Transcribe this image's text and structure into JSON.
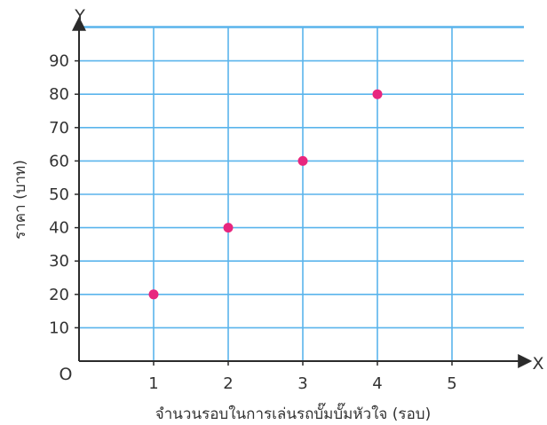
{
  "chart_data": {
    "type": "scatter",
    "xlabel": "จำนวนรอบในการเล่นรถบั๊มบั๊มหัวใจ (รอบ)",
    "ylabel": "ราคา (บาท)",
    "x_axis_name": "X",
    "y_axis_name": "Y",
    "origin_label": "O",
    "xlim": [
      0,
      5
    ],
    "ylim": [
      0,
      90
    ],
    "x_ticks": [
      1,
      2,
      3,
      4,
      5
    ],
    "y_ticks": [
      10,
      20,
      30,
      40,
      50,
      60,
      70,
      80,
      90
    ],
    "grid": true,
    "points": [
      {
        "x": 1,
        "y": 20
      },
      {
        "x": 2,
        "y": 40
      },
      {
        "x": 3,
        "y": 60
      },
      {
        "x": 4,
        "y": 80
      }
    ],
    "colors": {
      "grid": "#5ab4ec",
      "axis": "#2b2b2b",
      "point": "#e8267e",
      "text": "#333333"
    }
  }
}
